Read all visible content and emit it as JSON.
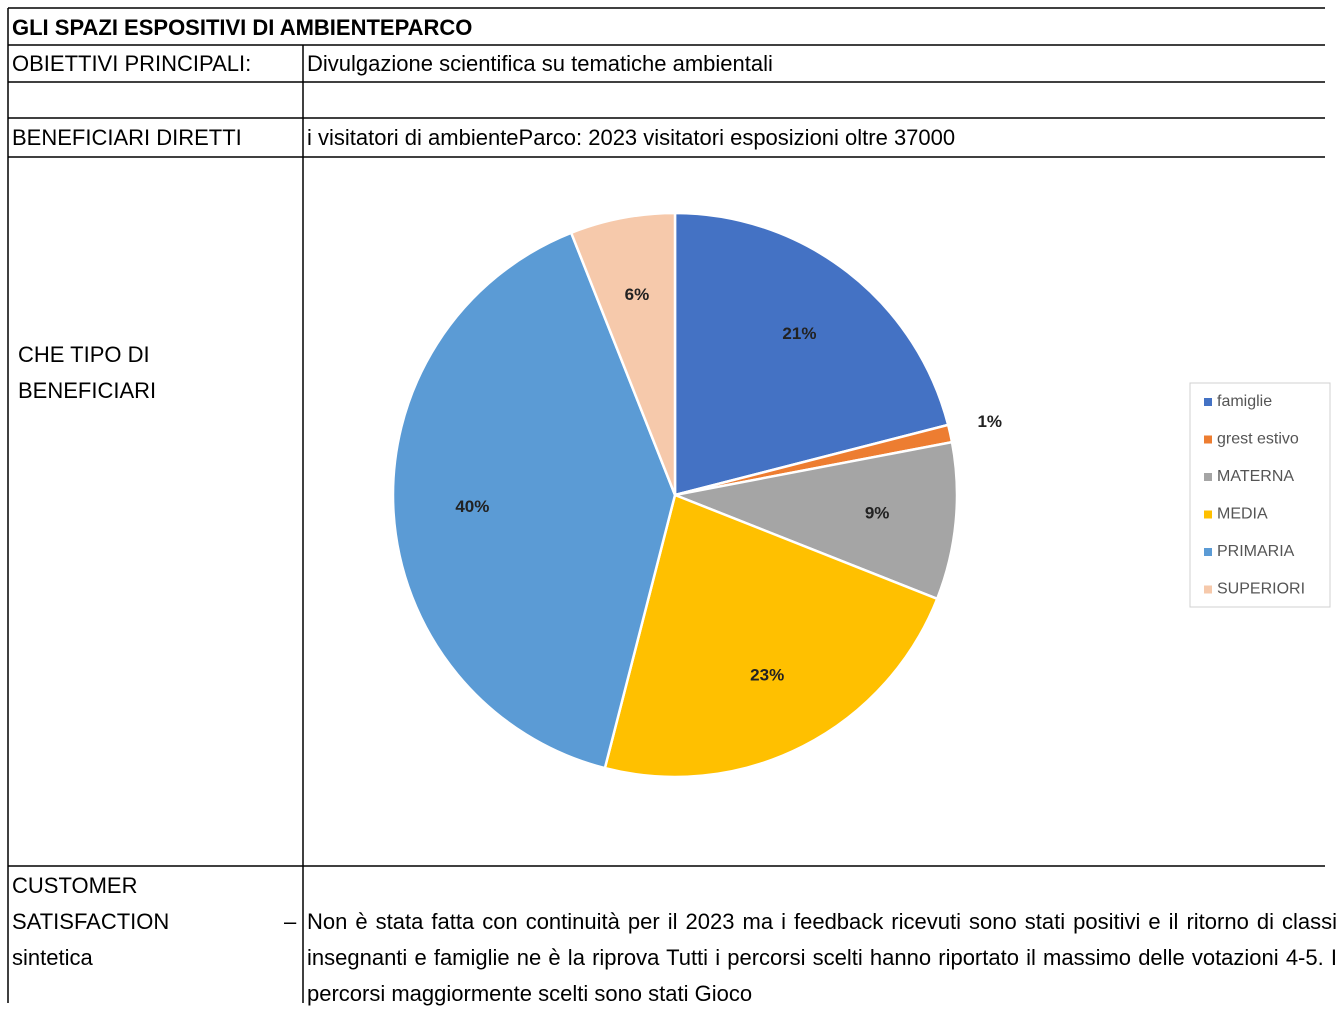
{
  "header": {
    "title": "GLI SPAZI ESPOSITIVI DI AMBIENTEPARCO"
  },
  "rows": [
    {
      "label": "OBIETTIVI PRINCIPALI:",
      "value": "Divulgazione scientifica su tematiche ambientali"
    },
    {
      "label": "BENEFICIARI DIRETTI",
      "value": "i visitatori di ambienteParco: 2023 visitatori esposizioni oltre 37000"
    },
    {
      "label": "CHE TIPO DI BENEFICIARI"
    },
    {
      "label": "CUSTOMER SATISFACTION sintetica",
      "dash": "–",
      "value": "Non è stata fatta con continuità per il 2023 ma i feedback ricevuti sono stati positivi e il ritorno di classi insegnanti e famiglie ne è la riprova Tutti i percorsi scelti hanno riportato il massimo delle votazioni 4-5. I percorsi maggiormente scelti sono stati Gioco"
    }
  ],
  "chart_data": {
    "type": "pie",
    "categories": [
      "famiglie",
      "grest estivo",
      "MATERNA",
      "MEDIA",
      "PRIMARIA",
      "SUPERIORI"
    ],
    "values": [
      21,
      1,
      9,
      23,
      40,
      6
    ],
    "value_labels": [
      "21%",
      "1%",
      "9%",
      "23%",
      "40%",
      "6%"
    ],
    "colors": [
      "#4472c4",
      "#ed7d31",
      "#a5a5a5",
      "#ffc000",
      "#5b9bd5",
      "#f6c9ab"
    ],
    "legend": "right"
  }
}
